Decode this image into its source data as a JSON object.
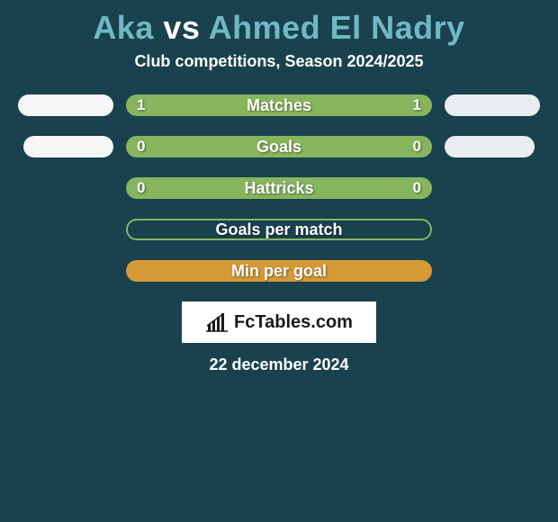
{
  "colors": {
    "background": "#1a414e",
    "player1_accent": "#6fb8c6",
    "vs_text": "#ffffff",
    "bar_green": "#86b55e",
    "bar_orange": "#d59a36",
    "badge_p1": "#f4f6f7",
    "badge_p2": "#e9edef",
    "logo_bg": "#ffffff",
    "logo_text": "#1a1a1a"
  },
  "title": {
    "player1": "Aka",
    "vs": "vs",
    "player2": "Ahmed El Nadry"
  },
  "subtitle": "Club competitions, Season 2024/2025",
  "badges": {
    "row0": {
      "left_w": 106,
      "right_w": 106
    },
    "row1": {
      "left_w": 100,
      "right_w": 100
    }
  },
  "stats_rows": [
    {
      "label": "Matches",
      "left": "1",
      "right": "1",
      "bar_fill": "#86b55e",
      "bar_border": null,
      "show_badges": true,
      "badge_row": "row0"
    },
    {
      "label": "Goals",
      "left": "0",
      "right": "0",
      "bar_fill": "#86b55e",
      "bar_border": null,
      "show_badges": true,
      "badge_row": "row1"
    },
    {
      "label": "Hattricks",
      "left": "0",
      "right": "0",
      "bar_fill": "#86b55e",
      "bar_border": null,
      "show_badges": false
    },
    {
      "label": "Goals per match",
      "left": "",
      "right": "",
      "bar_fill": "transparent",
      "bar_border": "#86b55e",
      "show_badges": false
    },
    {
      "label": "Min per goal",
      "left": "",
      "right": "",
      "bar_fill": "#d59a36",
      "bar_border": null,
      "show_badges": false
    }
  ],
  "logo": {
    "text": "FcTables.com"
  },
  "date": "22 december 2024"
}
